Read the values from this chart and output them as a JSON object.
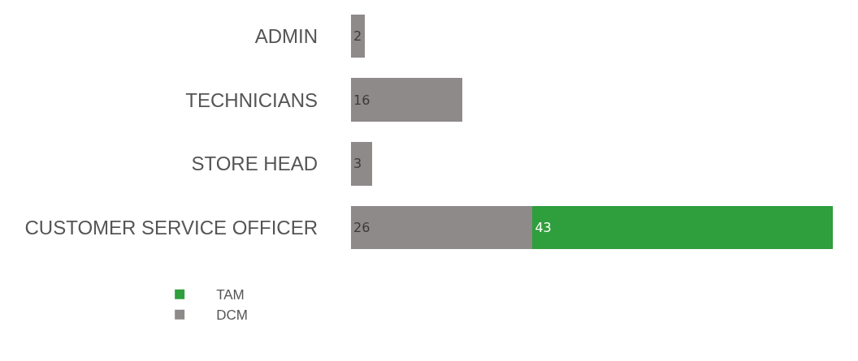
{
  "chart_data": {
    "type": "bar",
    "orientation": "horizontal",
    "stacked": true,
    "categories": [
      "ADMIN",
      "TECHNICIANS",
      "STORE HEAD",
      "CUSTOMER SERVICE OFFICER"
    ],
    "series": [
      {
        "name": "DCM",
        "color": "#8e8a89",
        "values": [
          2,
          16,
          3,
          26
        ]
      },
      {
        "name": "TAM",
        "color": "#2f9e3c",
        "values": [
          null,
          null,
          null,
          43
        ]
      }
    ],
    "data_labels": true,
    "legend": "bottom left"
  }
}
